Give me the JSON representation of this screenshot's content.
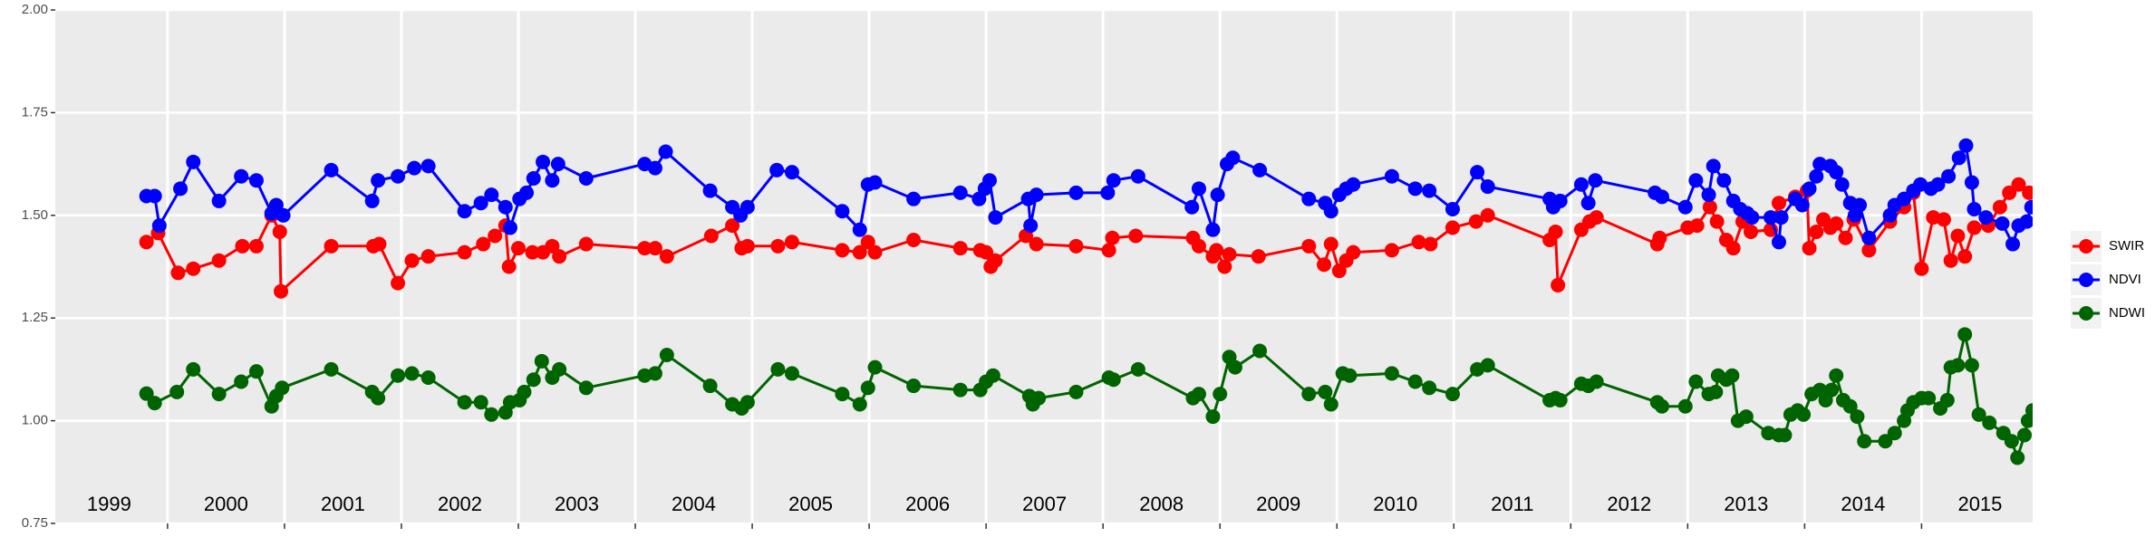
{
  "chart_data": {
    "type": "line",
    "xlim": [
      1999.04,
      2015.95
    ],
    "xticks": [
      2000,
      2001,
      2002,
      2003,
      2004,
      2005,
      2006,
      2007,
      2008,
      2009,
      2010,
      2011,
      2012,
      2013,
      2014,
      2015
    ],
    "ylim": [
      0.75,
      2.0
    ],
    "yticks": [
      {
        "value": 0.75,
        "label": "0.75"
      },
      {
        "value": 1.0,
        "label": "1.00"
      },
      {
        "value": 1.25,
        "label": "1.25"
      },
      {
        "value": 1.5,
        "label": "1.50"
      },
      {
        "value": 1.75,
        "label": "1.75"
      },
      {
        "value": 2.0,
        "label": "2.00"
      }
    ],
    "grid": true,
    "legend_position": "right",
    "annotations": [
      {
        "x": 1999.5,
        "label": "1999"
      },
      {
        "x": 2000.5,
        "label": "2000"
      },
      {
        "x": 2001.5,
        "label": "2001"
      },
      {
        "x": 2002.5,
        "label": "2002"
      },
      {
        "x": 2003.5,
        "label": "2003"
      },
      {
        "x": 2004.5,
        "label": "2004"
      },
      {
        "x": 2005.5,
        "label": "2005"
      },
      {
        "x": 2006.5,
        "label": "2006"
      },
      {
        "x": 2007.5,
        "label": "2007"
      },
      {
        "x": 2008.5,
        "label": "2008"
      },
      {
        "x": 2009.5,
        "label": "2009"
      },
      {
        "x": 2010.5,
        "label": "2010"
      },
      {
        "x": 2011.5,
        "label": "2011"
      },
      {
        "x": 2012.5,
        "label": "2012"
      },
      {
        "x": 2013.5,
        "label": "2013"
      },
      {
        "x": 2014.5,
        "label": "2014"
      },
      {
        "x": 2015.5,
        "label": "2015"
      }
    ],
    "series": [
      {
        "name": "SWIR",
        "color": "#ff0000",
        "x": [
          1999.82,
          1999.92,
          2000.09,
          2000.22,
          2000.44,
          2000.64,
          2000.76,
          2000.89,
          2000.96,
          2000.97,
          2001.4,
          2001.76,
          2001.81,
          2001.97,
          2002.09,
          2002.23,
          2002.54,
          2002.7,
          2002.8,
          2002.89,
          2002.92,
          2003.0,
          2003.12,
          2003.21,
          2003.29,
          2003.35,
          2003.58,
          2004.08,
          2004.17,
          2004.27,
          2004.65,
          2004.83,
          2004.91,
          2004.96,
          2005.22,
          2005.34,
          2005.77,
          2005.92,
          2005.99,
          2006.05,
          2006.38,
          2006.78,
          2006.95,
          2007.0,
          2007.04,
          2007.08,
          2007.34,
          2007.43,
          2007.77,
          2008.05,
          2008.08,
          2008.28,
          2008.77,
          2008.82,
          2008.94,
          2008.97,
          2009.04,
          2009.08,
          2009.33,
          2009.76,
          2009.89,
          2009.95,
          2010.02,
          2010.08,
          2010.14,
          2010.47,
          2010.7,
          2010.8,
          2010.99,
          2011.19,
          2011.29,
          2011.82,
          2011.87,
          2011.89,
          2012.09,
          2012.16,
          2012.22,
          2012.74,
          2012.76,
          2013.0,
          2013.08,
          2013.19,
          2013.25,
          2013.33,
          2013.39,
          2013.47,
          2013.54,
          2013.71,
          2013.78,
          2013.92,
          2014.02,
          2014.04,
          2014.1,
          2014.16,
          2014.22,
          2014.27,
          2014.35,
          2014.42,
          2014.55,
          2014.73,
          2014.85,
          2014.93,
          2015.0,
          2015.1,
          2015.19,
          2015.25,
          2015.31,
          2015.37,
          2015.45,
          2015.57,
          2015.67,
          2015.75,
          2015.83,
          2015.92
        ],
        "values": [
          1.435,
          1.457,
          1.36,
          1.37,
          1.39,
          1.425,
          1.425,
          1.5,
          1.46,
          1.315,
          1.425,
          1.425,
          1.43,
          1.335,
          1.39,
          1.4,
          1.41,
          1.43,
          1.45,
          1.475,
          1.375,
          1.42,
          1.41,
          1.41,
          1.425,
          1.4,
          1.43,
          1.42,
          1.42,
          1.4,
          1.45,
          1.475,
          1.42,
          1.425,
          1.425,
          1.435,
          1.415,
          1.41,
          1.435,
          1.41,
          1.44,
          1.42,
          1.415,
          1.41,
          1.375,
          1.39,
          1.45,
          1.43,
          1.425,
          1.415,
          1.445,
          1.45,
          1.445,
          1.425,
          1.4,
          1.415,
          1.375,
          1.405,
          1.4,
          1.425,
          1.38,
          1.43,
          1.365,
          1.39,
          1.41,
          1.415,
          1.435,
          1.43,
          1.47,
          1.485,
          1.5,
          1.44,
          1.46,
          1.33,
          1.465,
          1.485,
          1.495,
          1.43,
          1.445,
          1.47,
          1.475,
          1.52,
          1.485,
          1.44,
          1.42,
          1.485,
          1.46,
          1.465,
          1.53,
          1.545,
          1.56,
          1.42,
          1.46,
          1.49,
          1.47,
          1.48,
          1.445,
          1.49,
          1.415,
          1.485,
          1.52,
          1.555,
          1.37,
          1.495,
          1.49,
          1.39,
          1.45,
          1.4,
          1.47,
          1.475,
          1.52,
          1.555,
          1.575,
          1.555
        ]
      },
      {
        "name": "NDVI",
        "color": "#0000ff",
        "x": [
          1999.82,
          1999.89,
          1999.93,
          2000.11,
          2000.22,
          2000.44,
          2000.63,
          2000.76,
          2000.89,
          2000.93,
          2000.99,
          2001.4,
          2001.75,
          2001.8,
          2001.97,
          2002.11,
          2002.23,
          2002.54,
          2002.68,
          2002.77,
          2002.89,
          2002.93,
          2003.01,
          2003.07,
          2003.13,
          2003.21,
          2003.29,
          2003.34,
          2003.58,
          2004.08,
          2004.17,
          2004.26,
          2004.64,
          2004.83,
          2004.9,
          2004.96,
          2005.21,
          2005.34,
          2005.77,
          2005.92,
          2005.99,
          2006.05,
          2006.38,
          2006.78,
          2006.94,
          2006.99,
          2007.03,
          2007.08,
          2007.36,
          2007.38,
          2007.43,
          2007.77,
          2008.04,
          2008.09,
          2008.3,
          2008.76,
          2008.82,
          2008.94,
          2008.98,
          2009.06,
          2009.11,
          2009.34,
          2009.76,
          2009.9,
          2009.95,
          2010.02,
          2010.08,
          2010.14,
          2010.47,
          2010.67,
          2010.79,
          2010.99,
          2011.2,
          2011.29,
          2011.82,
          2011.85,
          2011.91,
          2012.09,
          2012.15,
          2012.21,
          2012.72,
          2012.78,
          2012.98,
          2013.07,
          2013.18,
          2013.22,
          2013.31,
          2013.39,
          2013.45,
          2013.51,
          2013.55,
          2013.71,
          2013.78,
          2013.8,
          2013.92,
          2013.98,
          2014.04,
          2014.1,
          2014.13,
          2014.22,
          2014.27,
          2014.32,
          2014.39,
          2014.43,
          2014.47,
          2014.55,
          2014.73,
          2014.77,
          2014.85,
          2014.93,
          2014.99,
          2015.08,
          2015.14,
          2015.23,
          2015.32,
          2015.38,
          2015.43,
          2015.45,
          2015.55,
          2015.69,
          2015.78,
          2015.83,
          2015.9,
          2015.94
        ],
        "values": [
          1.547,
          1.547,
          1.475,
          1.565,
          1.63,
          1.535,
          1.595,
          1.585,
          1.505,
          1.525,
          1.5,
          1.61,
          1.535,
          1.585,
          1.595,
          1.615,
          1.62,
          1.51,
          1.53,
          1.55,
          1.52,
          1.47,
          1.54,
          1.555,
          1.59,
          1.63,
          1.585,
          1.625,
          1.59,
          1.625,
          1.615,
          1.655,
          1.56,
          1.52,
          1.5,
          1.52,
          1.61,
          1.605,
          1.51,
          1.465,
          1.575,
          1.58,
          1.54,
          1.555,
          1.54,
          1.565,
          1.585,
          1.495,
          1.54,
          1.475,
          1.55,
          1.555,
          1.555,
          1.585,
          1.595,
          1.52,
          1.565,
          1.465,
          1.55,
          1.625,
          1.64,
          1.61,
          1.54,
          1.53,
          1.51,
          1.55,
          1.565,
          1.575,
          1.595,
          1.565,
          1.56,
          1.515,
          1.605,
          1.57,
          1.54,
          1.52,
          1.535,
          1.575,
          1.53,
          1.585,
          1.555,
          1.545,
          1.52,
          1.585,
          1.55,
          1.62,
          1.585,
          1.535,
          1.515,
          1.505,
          1.495,
          1.495,
          1.435,
          1.495,
          1.54,
          1.525,
          1.565,
          1.595,
          1.625,
          1.62,
          1.605,
          1.575,
          1.53,
          1.5,
          1.525,
          1.445,
          1.5,
          1.525,
          1.54,
          1.56,
          1.575,
          1.565,
          1.575,
          1.595,
          1.64,
          1.67,
          1.58,
          1.515,
          1.495,
          1.48,
          1.43,
          1.475,
          1.485,
          1.52
        ]
      },
      {
        "name": "NDWI",
        "color": "#006400",
        "x": [
          1999.82,
          1999.89,
          2000.08,
          2000.22,
          2000.44,
          2000.63,
          2000.76,
          2000.89,
          2000.93,
          2000.98,
          2001.4,
          2001.75,
          2001.8,
          2001.97,
          2002.09,
          2002.23,
          2002.54,
          2002.68,
          2002.77,
          2002.89,
          2002.93,
          2003.01,
          2003.05,
          2003.13,
          2003.2,
          2003.29,
          2003.35,
          2003.58,
          2004.08,
          2004.17,
          2004.27,
          2004.64,
          2004.83,
          2004.91,
          2004.96,
          2005.22,
          2005.34,
          2005.77,
          2005.92,
          2005.99,
          2006.05,
          2006.38,
          2006.78,
          2006.95,
          2007.0,
          2007.06,
          2007.37,
          2007.4,
          2007.45,
          2007.77,
          2008.05,
          2008.09,
          2008.3,
          2008.77,
          2008.82,
          2008.94,
          2009.0,
          2009.08,
          2009.13,
          2009.34,
          2009.76,
          2009.9,
          2009.95,
          2010.05,
          2010.11,
          2010.47,
          2010.67,
          2010.79,
          2010.99,
          2011.2,
          2011.29,
          2011.82,
          2011.87,
          2011.91,
          2012.09,
          2012.15,
          2012.22,
          2012.74,
          2012.78,
          2012.98,
          2013.07,
          2013.18,
          2013.24,
          2013.26,
          2013.33,
          2013.38,
          2013.43,
          2013.5,
          2013.69,
          2013.78,
          2013.83,
          2013.88,
          2013.94,
          2013.99,
          2014.06,
          2014.13,
          2014.18,
          2014.23,
          2014.27,
          2014.33,
          2014.39,
          2014.45,
          2014.51,
          2014.69,
          2014.77,
          2014.85,
          2014.88,
          2014.93,
          2015.0,
          2015.06,
          2015.16,
          2015.22,
          2015.25,
          2015.31,
          2015.37,
          2015.43,
          2015.49,
          2015.58,
          2015.7,
          2015.77,
          2015.82,
          2015.88,
          2015.91,
          2015.95
        ],
        "values": [
          1.066,
          1.043,
          1.07,
          1.125,
          1.065,
          1.095,
          1.12,
          1.035,
          1.06,
          1.08,
          1.125,
          1.07,
          1.055,
          1.11,
          1.115,
          1.105,
          1.045,
          1.045,
          1.015,
          1.02,
          1.045,
          1.05,
          1.07,
          1.1,
          1.145,
          1.105,
          1.125,
          1.08,
          1.11,
          1.115,
          1.16,
          1.085,
          1.04,
          1.03,
          1.045,
          1.125,
          1.115,
          1.065,
          1.04,
          1.08,
          1.13,
          1.085,
          1.075,
          1.075,
          1.095,
          1.11,
          1.06,
          1.04,
          1.055,
          1.07,
          1.105,
          1.1,
          1.125,
          1.055,
          1.065,
          1.01,
          1.065,
          1.155,
          1.13,
          1.17,
          1.065,
          1.07,
          1.04,
          1.115,
          1.11,
          1.115,
          1.095,
          1.08,
          1.065,
          1.125,
          1.135,
          1.05,
          1.055,
          1.05,
          1.09,
          1.085,
          1.095,
          1.045,
          1.035,
          1.035,
          1.095,
          1.065,
          1.07,
          1.11,
          1.1,
          1.11,
          1.0,
          1.01,
          0.97,
          0.965,
          0.965,
          1.015,
          1.025,
          1.015,
          1.065,
          1.075,
          1.05,
          1.075,
          1.11,
          1.05,
          1.035,
          1.01,
          0.95,
          0.95,
          0.97,
          1.0,
          1.025,
          1.045,
          1.055,
          1.055,
          1.03,
          1.05,
          1.13,
          1.135,
          1.21,
          1.135,
          1.015,
          0.995,
          0.97,
          0.95,
          0.91,
          0.965,
          1.0,
          1.025
        ]
      }
    ]
  }
}
